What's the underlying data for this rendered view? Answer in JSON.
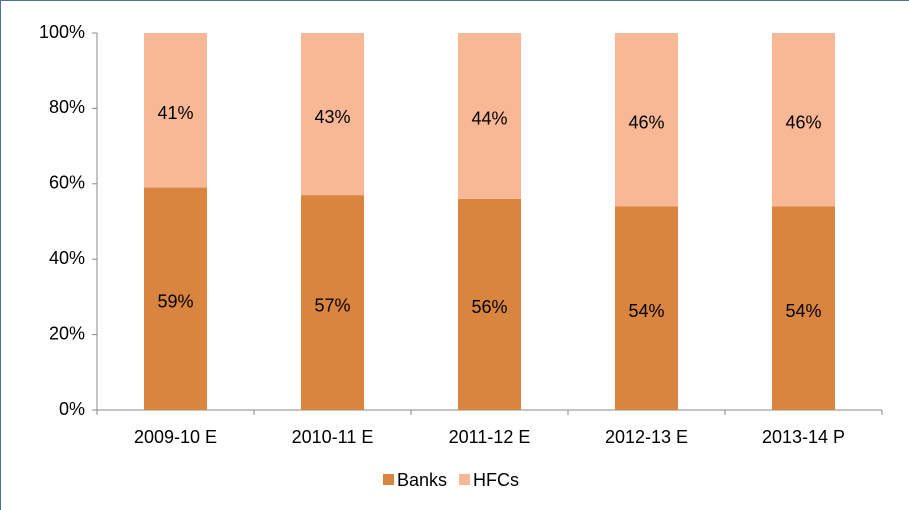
{
  "chart_data": {
    "type": "stacked_bar",
    "categories": [
      "2009-10 E",
      "2010-11 E",
      "2011-12 E",
      "2012-13 E",
      "2013-14 P"
    ],
    "series": [
      {
        "name": "Banks",
        "color": "#d9843f",
        "values": [
          59,
          57,
          56,
          54,
          54
        ],
        "value_labels": [
          "59%",
          "57%",
          "56%",
          "54%",
          "54%"
        ]
      },
      {
        "name": "HFCs",
        "color": "#f8b896",
        "values": [
          41,
          43,
          44,
          46,
          46
        ],
        "value_labels": [
          "41%",
          "43%",
          "44%",
          "46%",
          "46%"
        ]
      }
    ],
    "ylim": [
      0,
      100
    ],
    "yticks": [
      {
        "value": 0,
        "label": "0%"
      },
      {
        "value": 20,
        "label": "20%"
      },
      {
        "value": 40,
        "label": "40%"
      },
      {
        "value": 60,
        "label": "60%"
      },
      {
        "value": 80,
        "label": "80%"
      },
      {
        "value": 100,
        "label": "100%"
      }
    ],
    "legend": "bottom"
  }
}
